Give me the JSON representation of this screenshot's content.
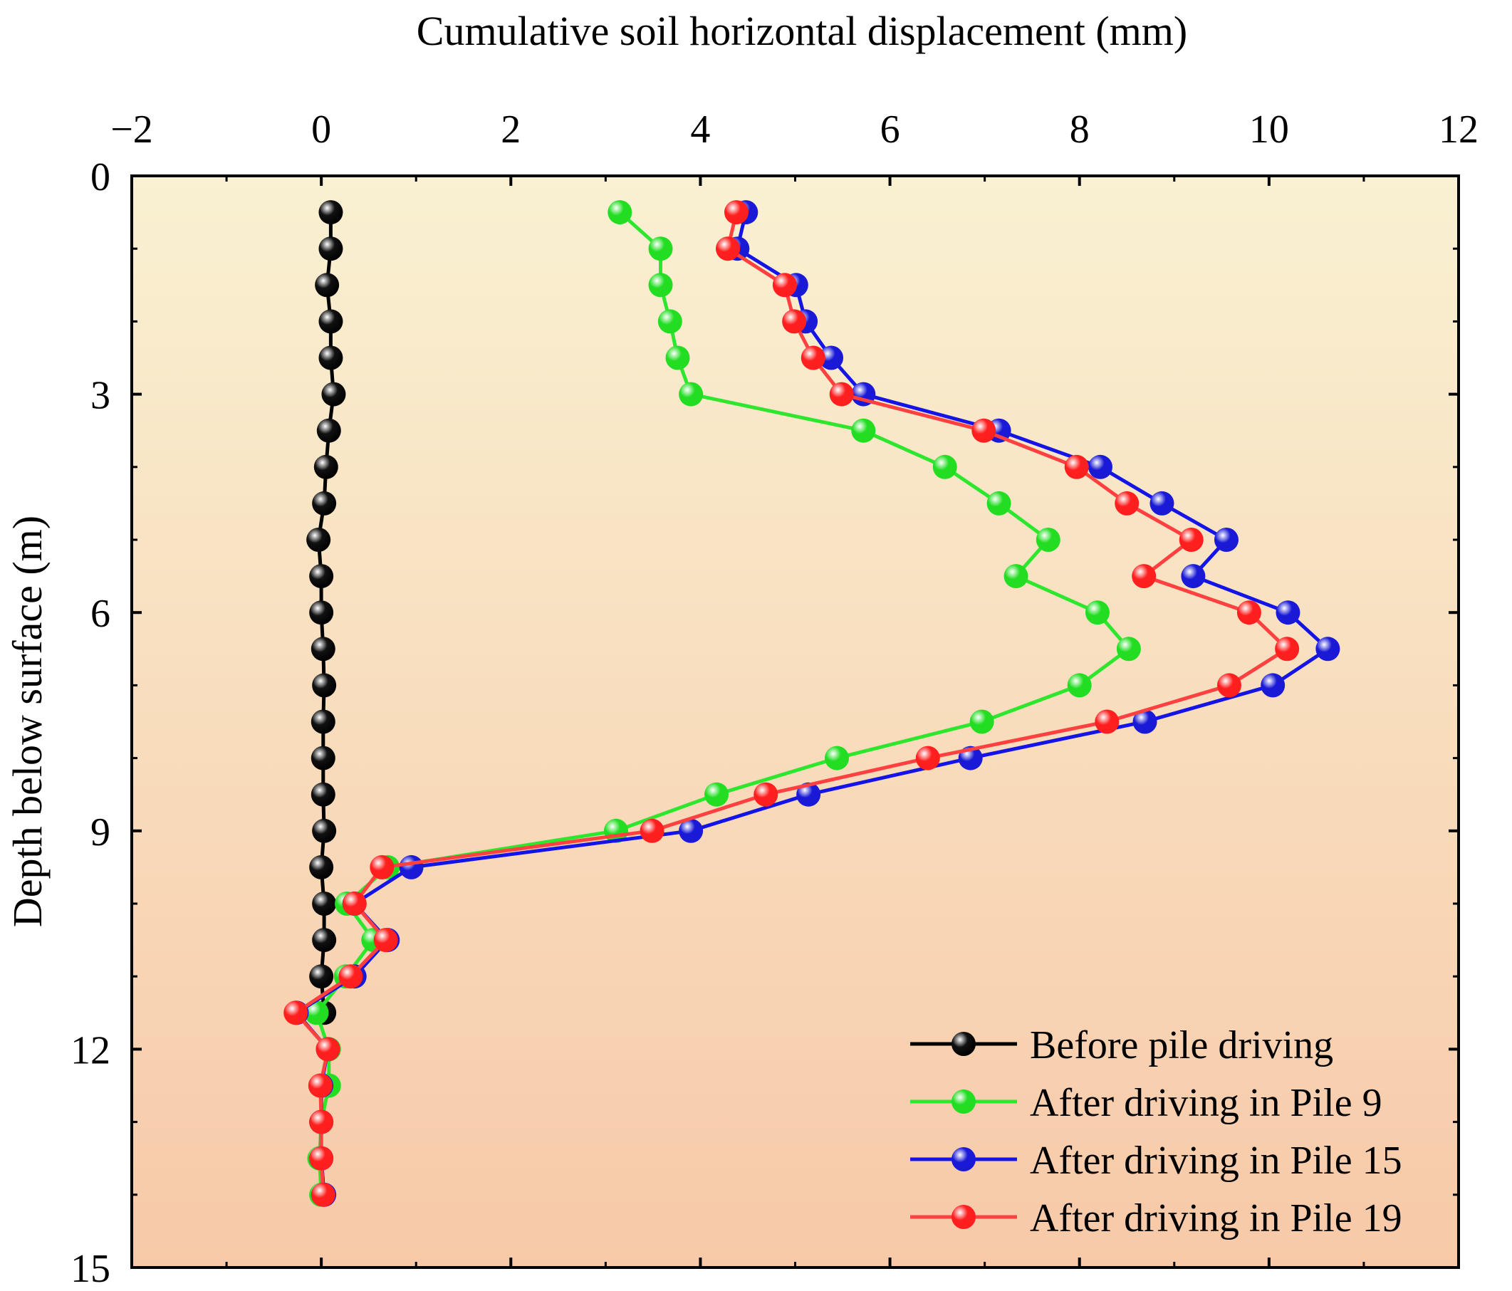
{
  "chart_data": {
    "type": "line",
    "title": "",
    "xlabel": "Cumulative soil horizontal displacement (mm)",
    "ylabel": "Depth below surface (m)",
    "xlim": [
      -2,
      12
    ],
    "ylim": [
      0,
      15
    ],
    "y_inverted": true,
    "x_axis_position": "top",
    "x_ticks": [
      -2,
      0,
      2,
      4,
      6,
      8,
      10,
      12
    ],
    "x_tick_labels": [
      "−2",
      "0",
      "2",
      "4",
      "6",
      "8",
      "10",
      "12"
    ],
    "y_ticks": [
      0,
      3,
      6,
      9,
      12,
      15
    ],
    "y_tick_labels": [
      "0",
      "3",
      "6",
      "9",
      "12",
      "15"
    ],
    "grid": false,
    "legend_position": "bottom-right",
    "background_gradient": [
      "#f9f1d2",
      "#f7c9a8"
    ],
    "depths": [
      0.5,
      1.0,
      1.5,
      2.0,
      2.5,
      3.0,
      3.5,
      4.0,
      4.5,
      5.0,
      5.5,
      6.0,
      6.5,
      7.0,
      7.5,
      8.0,
      8.5,
      9.0,
      9.5,
      10.0,
      10.5,
      11.0,
      11.5,
      12.0,
      12.5,
      13.0,
      13.5,
      14.0
    ],
    "series": [
      {
        "name": "Before pile driving",
        "color": "#000000",
        "marker_color": "#111111",
        "displacement": [
          0.1,
          0.1,
          0.06,
          0.1,
          0.1,
          0.13,
          0.08,
          0.05,
          0.03,
          -0.03,
          0.0,
          0.0,
          0.02,
          0.03,
          0.02,
          0.02,
          0.02,
          0.03,
          0.0,
          0.03,
          0.03,
          0.0,
          0.03,
          null,
          null,
          null,
          null,
          null
        ]
      },
      {
        "name": "After driving in Pile 9",
        "color": "#2ee62e",
        "marker_color": "#22dd22",
        "displacement": [
          3.15,
          3.58,
          3.58,
          3.68,
          3.76,
          3.9,
          5.72,
          6.58,
          7.15,
          7.67,
          7.33,
          8.19,
          8.52,
          8.0,
          6.97,
          5.44,
          4.17,
          3.11,
          0.7,
          0.27,
          0.55,
          0.26,
          -0.05,
          0.08,
          0.08,
          0.0,
          -0.02,
          0.0
        ]
      },
      {
        "name": "After driving in Pile 15",
        "color": "#1414e6",
        "marker_color": "#1a1ad6",
        "displacement": [
          4.48,
          4.39,
          5.01,
          5.11,
          5.38,
          5.72,
          7.15,
          8.22,
          8.87,
          9.55,
          9.2,
          10.2,
          10.62,
          10.04,
          8.69,
          6.85,
          5.14,
          3.9,
          0.95,
          0.35,
          0.7,
          0.35,
          -0.26,
          0.07,
          0.0,
          0.0,
          0.0,
          0.03
        ]
      },
      {
        "name": "After driving in Pile 19",
        "color": "#ff4040",
        "marker_color": "#ff1f1f",
        "displacement": [
          4.38,
          4.29,
          4.89,
          4.99,
          5.19,
          5.49,
          6.99,
          7.97,
          8.5,
          9.18,
          8.68,
          9.79,
          10.19,
          9.58,
          8.29,
          6.4,
          4.69,
          3.49,
          0.64,
          0.35,
          0.68,
          0.31,
          -0.27,
          0.07,
          -0.01,
          0.0,
          0.0,
          0.02
        ]
      }
    ]
  }
}
